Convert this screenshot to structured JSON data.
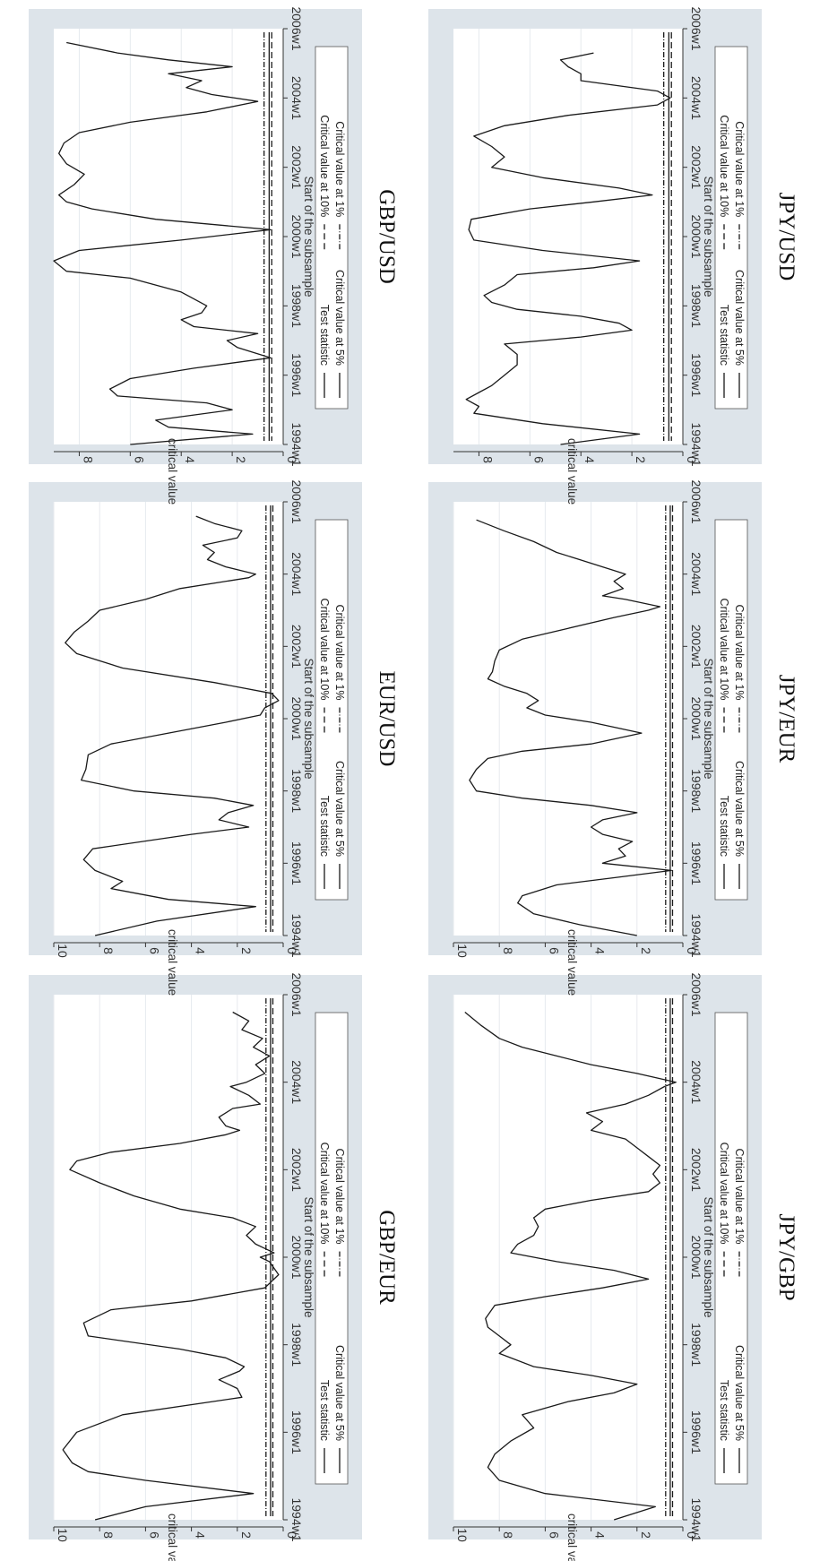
{
  "figure": {
    "background": "#dde4ea",
    "plot_background": "#ffffff",
    "gridline_color": "#e6eaee",
    "line_color": "#1a1a1a"
  },
  "legend": {
    "test_statistic": "Test statistic",
    "critical_10": "Critical value at 10%",
    "critical_5": "Critical value at 5%",
    "critical_1": "Critical value at 1%"
  },
  "chart_data": [
    {
      "type": "line",
      "title": "GBP/EUR",
      "xlabel": "Start of the subsample",
      "ylabel": "critical value",
      "xlim": [
        1994,
        2006
      ],
      "ylim": [
        0,
        10
      ],
      "xticks": [
        1994,
        1996,
        1998,
        2000,
        2002,
        2004,
        2006
      ],
      "xtick_labels": [
        "1994w1",
        "1996w1",
        "1998w1",
        "2000w1",
        "2002w1",
        "2004w1",
        "2006w1"
      ],
      "yticks": [
        0,
        2,
        4,
        6,
        8,
        10
      ],
      "critical_values": {
        "p10": 0.45,
        "p5": 0.55,
        "p1": 0.75
      },
      "series": [
        {
          "name": "Test statistic",
          "x": [
            1994.0,
            1994.3,
            1994.6,
            1994.9,
            1995.1,
            1995.3,
            1995.6,
            1996.0,
            1996.4,
            1996.8,
            1997.0,
            1997.2,
            1997.4,
            1997.5,
            1997.7,
            1997.9,
            1998.2,
            1998.5,
            1998.8,
            1999.0,
            1999.3,
            1999.6,
            1999.9,
            2000.0,
            2000.1,
            2000.2,
            2000.3,
            2000.5,
            2000.7,
            2000.9,
            2001.1,
            2001.4,
            2001.7,
            2002.0,
            2002.2,
            2002.4,
            2002.6,
            2002.8,
            2002.9,
            2003.0,
            2003.2,
            2003.4,
            2003.5,
            2003.7,
            2003.9,
            2004.0,
            2004.2,
            2004.4,
            2004.6,
            2004.8,
            2005.0,
            2005.2,
            2005.4,
            2005.6
          ],
          "y": [
            8.2,
            6.0,
            1.3,
            6.0,
            8.5,
            9.2,
            9.6,
            9.0,
            7.0,
            1.8,
            2.0,
            2.8,
            1.9,
            1.7,
            2.5,
            4.5,
            8.5,
            8.7,
            7.5,
            4.0,
            0.8,
            0.2,
            0.6,
            1.0,
            0.4,
            0.8,
            1.2,
            1.6,
            1.2,
            2.2,
            4.5,
            6.5,
            8.0,
            9.3,
            9.0,
            7.5,
            4.5,
            2.5,
            1.9,
            2.5,
            2.8,
            2.2,
            1.0,
            1.5,
            2.3,
            1.6,
            0.8,
            1.2,
            0.6,
            1.3,
            0.9,
            1.8,
            1.5,
            2.2
          ]
        }
      ]
    },
    {
      "type": "line",
      "title": "EUR/USD",
      "xlabel": "Start of the subsample",
      "ylabel": "critical value",
      "xlim": [
        1994,
        2006
      ],
      "ylim": [
        0,
        10
      ],
      "xticks": [
        1994,
        1996,
        1998,
        2000,
        2002,
        2004,
        2006
      ],
      "xtick_labels": [
        "1994w1",
        "1996w1",
        "1998w1",
        "2000w1",
        "2002w1",
        "2004w1",
        "2006w1"
      ],
      "yticks": [
        0,
        2,
        4,
        6,
        8,
        10
      ],
      "critical_values": {
        "p10": 0.45,
        "p5": 0.55,
        "p1": 0.75
      },
      "series": [
        {
          "name": "Test statistic",
          "x": [
            1994.0,
            1994.4,
            1994.8,
            1995.0,
            1995.3,
            1995.5,
            1995.8,
            1996.1,
            1996.4,
            1996.8,
            1997.0,
            1997.2,
            1997.4,
            1997.6,
            1997.8,
            1998.0,
            1998.3,
            1998.6,
            1999.0,
            1999.3,
            1999.6,
            1999.9,
            2000.1,
            2000.3,
            2000.5,
            2000.7,
            2001.0,
            2001.4,
            2001.8,
            2002.1,
            2002.4,
            2002.7,
            2003.0,
            2003.3,
            2003.6,
            2003.9,
            2004.0,
            2004.2,
            2004.4,
            2004.6,
            2004.8,
            2005.0,
            2005.2,
            2005.4,
            2005.6
          ],
          "y": [
            8.2,
            5.5,
            1.2,
            5.0,
            7.5,
            7.0,
            8.2,
            8.7,
            8.3,
            4.0,
            1.5,
            2.8,
            2.4,
            1.3,
            3.0,
            6.5,
            8.8,
            8.6,
            8.5,
            7.5,
            5.0,
            2.5,
            1.0,
            0.8,
            0.2,
            0.5,
            3.0,
            7.0,
            9.0,
            9.5,
            9.1,
            8.5,
            8.0,
            6.0,
            4.5,
            1.5,
            1.2,
            2.5,
            3.3,
            3.0,
            3.5,
            2.0,
            1.8,
            3.0,
            3.8
          ]
        }
      ]
    },
    {
      "type": "line",
      "title": "GBP/USD",
      "xlabel": "Start of the subsample",
      "ylabel": "critical value",
      "xlim": [
        1994,
        2006
      ],
      "ylim": [
        0,
        9
      ],
      "xticks": [
        1994,
        1996,
        1998,
        2000,
        2002,
        2004,
        2006
      ],
      "xtick_labels": [
        "1994w1",
        "1996w1",
        "1998w1",
        "2000w1",
        "2002w1",
        "2004w1",
        "2006w1"
      ],
      "yticks": [
        0,
        2,
        4,
        6,
        8
      ],
      "critical_values": {
        "p10": 0.45,
        "p5": 0.55,
        "p1": 0.75
      },
      "series": [
        {
          "name": "Test statistic",
          "x": [
            1994.0,
            1994.3,
            1994.5,
            1994.7,
            1995.0,
            1995.2,
            1995.4,
            1995.6,
            1995.9,
            1996.2,
            1996.5,
            1996.8,
            1997.0,
            1997.2,
            1997.4,
            1997.6,
            1997.8,
            1998.0,
            1998.2,
            1998.4,
            1998.6,
            1998.8,
            1999.0,
            1999.3,
            1999.6,
            1999.9,
            2000.2,
            2000.5,
            2000.8,
            2001.0,
            2001.2,
            2001.5,
            2001.8,
            2002.1,
            2002.4,
            2002.7,
            2003.0,
            2003.3,
            2003.6,
            2003.9,
            2004.1,
            2004.3,
            2004.5,
            2004.7,
            2004.9,
            2005.1,
            2005.3,
            2005.6
          ],
          "y": [
            6.0,
            1.2,
            4.5,
            5.0,
            2.0,
            3.0,
            6.5,
            6.8,
            6.0,
            3.5,
            0.5,
            1.8,
            2.2,
            1.0,
            3.5,
            4.0,
            3.2,
            3.0,
            3.5,
            4.0,
            5.0,
            6.0,
            8.5,
            9.0,
            8.0,
            4.0,
            0.5,
            5.0,
            7.5,
            8.5,
            8.8,
            8.2,
            7.8,
            8.5,
            8.8,
            8.6,
            8.0,
            6.0,
            3.0,
            1.0,
            2.8,
            3.8,
            3.2,
            4.5,
            2.0,
            4.5,
            6.5,
            8.5
          ]
        }
      ]
    },
    {
      "type": "line",
      "title": "JPY/GBP",
      "xlabel": "Start of the subsample",
      "ylabel": "critical value",
      "xlim": [
        1994,
        2006
      ],
      "ylim": [
        0,
        10
      ],
      "xticks": [
        1994,
        1996,
        1998,
        2000,
        2002,
        2004,
        2006
      ],
      "xtick_labels": [
        "1994w1",
        "1996w1",
        "1998w1",
        "2000w1",
        "2002w1",
        "2004w1",
        "2006w1"
      ],
      "yticks": [
        0,
        2,
        4,
        6,
        8,
        10
      ],
      "critical_values": {
        "p10": 0.45,
        "p5": 0.55,
        "p1": 0.75
      },
      "series": [
        {
          "name": "Test statistic",
          "x": [
            1994.0,
            1994.3,
            1994.6,
            1994.9,
            1995.2,
            1995.5,
            1995.8,
            1996.1,
            1996.4,
            1996.7,
            1996.9,
            1997.1,
            1997.3,
            1997.5,
            1997.8,
            1998.0,
            1998.2,
            1998.4,
            1998.6,
            1998.9,
            1999.1,
            1999.3,
            1999.5,
            1999.7,
            1999.9,
            2000.1,
            2000.3,
            2000.5,
            2000.7,
            2000.9,
            2001.1,
            2001.3,
            2001.5,
            2001.7,
            2001.9,
            2002.1,
            2002.3,
            2002.5,
            2002.7,
            2002.9,
            2003.1,
            2003.3,
            2003.5,
            2003.7,
            2003.9,
            2004.0,
            2004.2,
            2004.4,
            2004.6,
            2004.8,
            2005.0,
            2005.3,
            2005.6
          ],
          "y": [
            3.0,
            1.2,
            6.0,
            8.0,
            8.5,
            8.2,
            7.5,
            6.5,
            7.0,
            5.0,
            3.0,
            2.0,
            4.0,
            6.5,
            8.0,
            7.5,
            8.0,
            8.5,
            8.6,
            8.2,
            6.0,
            3.5,
            1.5,
            3.0,
            5.5,
            7.5,
            7.2,
            6.5,
            6.3,
            6.5,
            6.0,
            4.0,
            1.5,
            1.0,
            1.3,
            1.0,
            1.5,
            2.0,
            2.5,
            4.0,
            3.5,
            4.2,
            2.5,
            1.5,
            0.8,
            0.3,
            2.0,
            4.0,
            5.5,
            7.0,
            8.0,
            8.8,
            9.5
          ]
        }
      ]
    },
    {
      "type": "line",
      "title": "JPY/EUR",
      "xlabel": "Start of the subsample",
      "ylabel": "critical value",
      "xlim": [
        1994,
        2006
      ],
      "ylim": [
        0,
        10
      ],
      "xticks": [
        1994,
        1996,
        1998,
        2000,
        2002,
        2004,
        2006
      ],
      "xtick_labels": [
        "1994w1",
        "1996w1",
        "1998w1",
        "2000w1",
        "2002w1",
        "2004w1",
        "2006w1"
      ],
      "yticks": [
        0,
        2,
        4,
        6,
        8,
        10
      ],
      "critical_values": {
        "p10": 0.45,
        "p5": 0.55,
        "p1": 0.75
      },
      "series": [
        {
          "name": "Test statistic",
          "x": [
            1994.0,
            1994.3,
            1994.6,
            1994.9,
            1995.1,
            1995.4,
            1995.6,
            1995.8,
            1996.0,
            1996.2,
            1996.4,
            1996.6,
            1996.8,
            1997.0,
            1997.2,
            1997.4,
            1997.6,
            1997.8,
            1998.0,
            1998.3,
            1998.6,
            1998.9,
            1999.1,
            1999.3,
            1999.6,
            1999.9,
            2000.1,
            2000.3,
            2000.5,
            2000.7,
            2000.9,
            2001.1,
            2001.3,
            2001.6,
            2001.9,
            2002.2,
            2002.5,
            2002.8,
            2003.0,
            2003.1,
            2003.3,
            2003.4,
            2003.6,
            2003.8,
            2004.0,
            2004.2,
            2004.4,
            2004.6,
            2004.9,
            2005.2,
            2005.5
          ],
          "y": [
            2.0,
            4.5,
            6.5,
            7.2,
            7.0,
            5.5,
            3.0,
            0.5,
            3.5,
            2.5,
            2.8,
            2.2,
            3.5,
            4.0,
            3.5,
            2.0,
            4.0,
            7.0,
            9.0,
            9.3,
            9.0,
            8.5,
            7.0,
            4.0,
            1.8,
            4.0,
            6.0,
            6.8,
            6.3,
            6.8,
            7.8,
            8.5,
            8.3,
            8.2,
            8.0,
            7.0,
            5.0,
            3.0,
            1.5,
            1.0,
            2.5,
            3.5,
            2.6,
            3.0,
            2.5,
            3.5,
            4.5,
            5.5,
            6.5,
            7.8,
            9.0
          ]
        }
      ]
    },
    {
      "type": "line",
      "title": "JPY/USD",
      "xlabel": "Start of the subsample",
      "ylabel": "critical value",
      "xlim": [
        1994,
        2006
      ],
      "ylim": [
        0,
        9
      ],
      "xticks": [
        1994,
        1996,
        1998,
        2000,
        2002,
        2004,
        2006
      ],
      "xtick_labels": [
        "1994w1",
        "1996w1",
        "1998w1",
        "2000w1",
        "2002w1",
        "2004w1",
        "2006w1"
      ],
      "yticks": [
        0,
        2,
        4,
        6,
        8
      ],
      "critical_values": {
        "p10": 0.45,
        "p5": 0.55,
        "p1": 0.75
      },
      "series": [
        {
          "name": "Test statistic",
          "x": [
            1994.0,
            1994.3,
            1994.6,
            1994.9,
            1995.1,
            1995.3,
            1995.5,
            1995.7,
            1996.0,
            1996.3,
            1996.6,
            1996.9,
            1997.1,
            1997.3,
            1997.5,
            1997.7,
            1997.9,
            1998.1,
            1998.3,
            1998.6,
            1998.9,
            1999.1,
            1999.3,
            1999.6,
            1999.9,
            2000.2,
            2000.5,
            2000.8,
            2001.0,
            2001.2,
            2001.4,
            2001.7,
            2002.0,
            2002.3,
            2002.6,
            2002.9,
            2003.2,
            2003.5,
            2003.8,
            2004.0,
            2004.2,
            2004.4,
            2004.5,
            2004.7,
            2004.9,
            2005.1,
            2005.3
          ],
          "y": [
            4.8,
            1.7,
            5.5,
            8.2,
            8.0,
            8.5,
            8.0,
            7.5,
            7.0,
            6.5,
            6.5,
            7.0,
            4.0,
            2.0,
            2.5,
            4.0,
            6.5,
            7.5,
            7.8,
            7.0,
            6.5,
            3.5,
            1.7,
            5.5,
            8.2,
            8.4,
            8.3,
            6.0,
            3.5,
            1.2,
            2.5,
            5.5,
            7.5,
            7.0,
            7.5,
            8.2,
            7.0,
            4.5,
            1.0,
            0.5,
            1.0,
            3.0,
            4.0,
            4.0,
            4.5,
            4.8,
            3.5
          ]
        }
      ]
    }
  ]
}
